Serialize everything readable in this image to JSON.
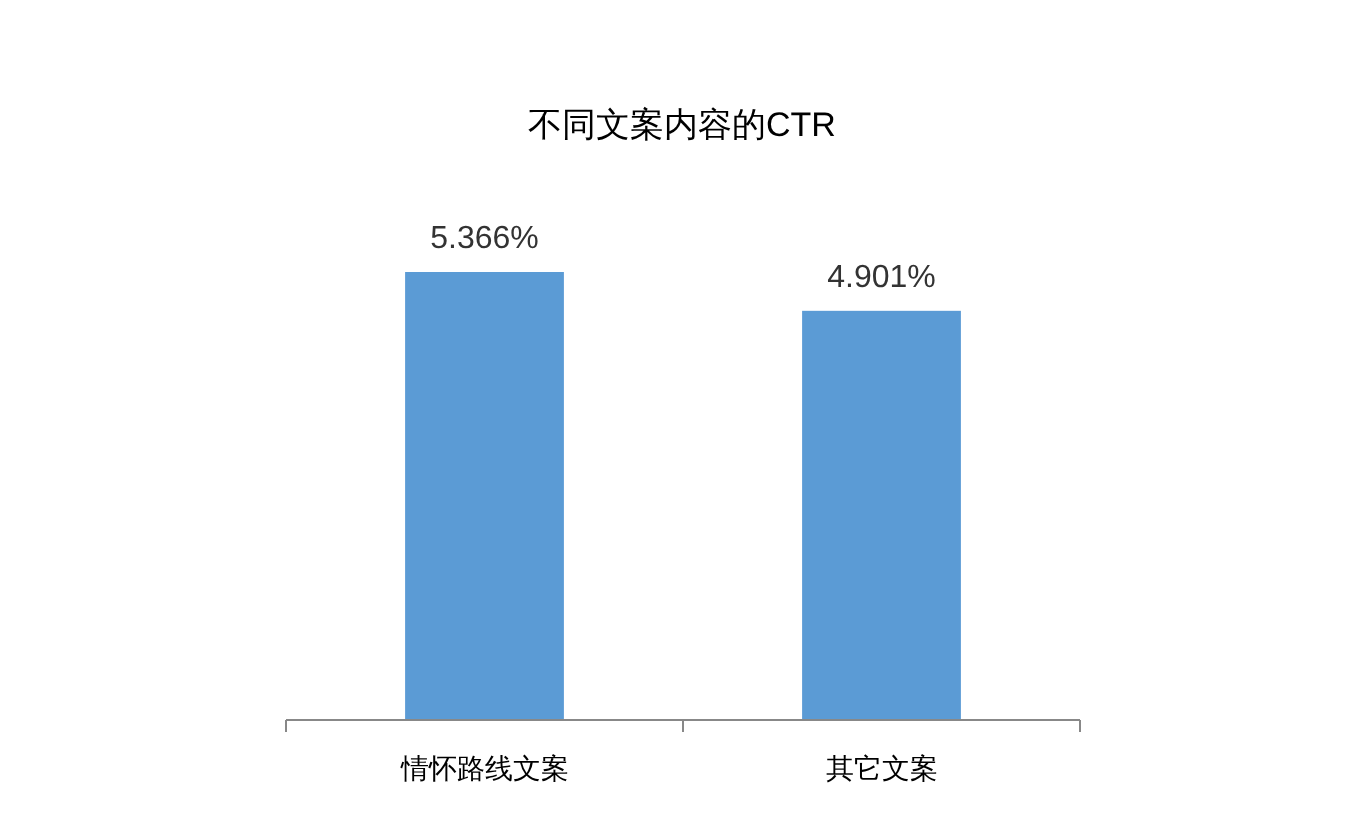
{
  "chart_data": {
    "type": "bar",
    "title": "不同文案内容的CTR",
    "categories": [
      "情怀路线文案",
      "其它文案"
    ],
    "values": [
      5.366,
      4.901
    ],
    "value_labels": [
      "5.366%",
      "4.901%"
    ],
    "color": "#5b9bd5"
  }
}
